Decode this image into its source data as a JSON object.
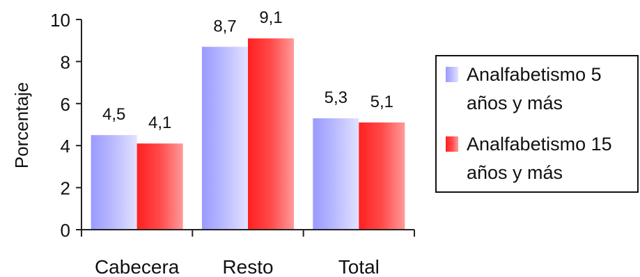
{
  "chart_data": {
    "type": "bar",
    "ylabel": "Porcentaje",
    "ylim": [
      0,
      10
    ],
    "yticks": [
      "0",
      "2",
      "4",
      "6",
      "8",
      "10"
    ],
    "categories": [
      "Cabecera",
      "Resto",
      "Total"
    ],
    "series": [
      {
        "name": "Analfabetismo 5 años y más",
        "name_lines": [
          "Analfabetismo 5",
          "años y más"
        ],
        "values": [
          4.5,
          8.7,
          5.3
        ],
        "labels": [
          "4,5",
          "8,7",
          "5,3"
        ],
        "color": "#b3b3ff"
      },
      {
        "name": "Analfabetismo 15 años y más",
        "name_lines": [
          "Analfabetismo 15",
          "años y más"
        ],
        "values": [
          4.1,
          9.1,
          5.1
        ],
        "labels": [
          "4,1",
          "9,1",
          "5,1"
        ],
        "color": "#ff3b3b"
      }
    ],
    "legend": "right",
    "grid": false
  }
}
